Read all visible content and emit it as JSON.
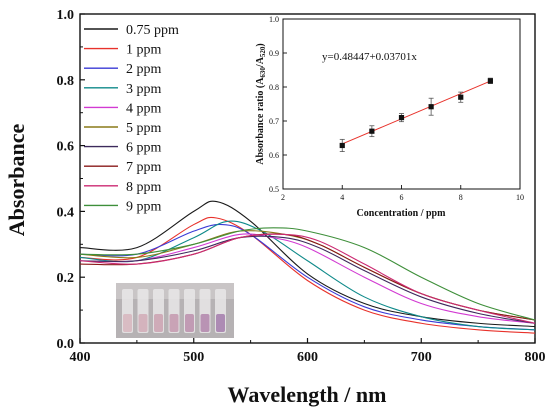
{
  "chart_data": [
    {
      "type": "line",
      "xlabel": "Wavelength / nm",
      "ylabel": "Absorbance",
      "xlim": [
        400,
        800
      ],
      "ylim": [
        0.0,
        1.0
      ],
      "xticks": [
        "400",
        "500",
        "600",
        "700",
        "800"
      ],
      "yticks": [
        "0.0",
        "0.2",
        "0.4",
        "0.6",
        "0.8",
        "1.0"
      ],
      "legend_position": "top-left",
      "series": [
        {
          "name": "0.75 ppm",
          "color": "#1a1a1a",
          "x": [
            400,
            450,
            500,
            520,
            550,
            600,
            650,
            700,
            750,
            800
          ],
          "y": [
            0.29,
            0.29,
            0.4,
            0.43,
            0.37,
            0.21,
            0.12,
            0.08,
            0.06,
            0.05
          ]
        },
        {
          "name": "1 ppm",
          "color": "#e8322b",
          "x": [
            400,
            450,
            500,
            520,
            550,
            600,
            650,
            700,
            750,
            800
          ],
          "y": [
            0.26,
            0.26,
            0.36,
            0.38,
            0.33,
            0.19,
            0.1,
            0.06,
            0.04,
            0.03
          ]
        },
        {
          "name": "2 ppm",
          "color": "#3a3ad6",
          "x": [
            400,
            450,
            500,
            525,
            550,
            600,
            650,
            700,
            750,
            800
          ],
          "y": [
            0.27,
            0.27,
            0.34,
            0.36,
            0.33,
            0.2,
            0.11,
            0.07,
            0.05,
            0.04
          ]
        },
        {
          "name": "3 ppm",
          "color": "#0f8a8a",
          "x": [
            400,
            450,
            500,
            530,
            560,
            600,
            650,
            700,
            750,
            800
          ],
          "y": [
            0.26,
            0.25,
            0.32,
            0.37,
            0.34,
            0.25,
            0.14,
            0.08,
            0.05,
            0.04
          ]
        },
        {
          "name": "4 ppm",
          "color": "#d23ad2",
          "x": [
            400,
            450,
            500,
            540,
            570,
            600,
            650,
            700,
            750,
            800
          ],
          "y": [
            0.25,
            0.25,
            0.29,
            0.33,
            0.32,
            0.29,
            0.2,
            0.12,
            0.08,
            0.06
          ]
        },
        {
          "name": "5 ppm",
          "color": "#8a7a18",
          "x": [
            400,
            450,
            500,
            540,
            580,
            610,
            650,
            700,
            750,
            800
          ],
          "y": [
            0.27,
            0.26,
            0.3,
            0.34,
            0.33,
            0.3,
            0.23,
            0.15,
            0.1,
            0.07
          ]
        },
        {
          "name": "6 ppm",
          "color": "#3d2a5c",
          "x": [
            400,
            450,
            500,
            540,
            580,
            610,
            650,
            700,
            750,
            800
          ],
          "y": [
            0.25,
            0.25,
            0.28,
            0.32,
            0.32,
            0.29,
            0.22,
            0.14,
            0.09,
            0.06
          ]
        },
        {
          "name": "7 ppm",
          "color": "#8a1a1a",
          "x": [
            400,
            450,
            500,
            540,
            580,
            610,
            650,
            700,
            750,
            800
          ],
          "y": [
            0.24,
            0.24,
            0.27,
            0.32,
            0.33,
            0.3,
            0.23,
            0.15,
            0.1,
            0.07
          ]
        },
        {
          "name": "8 ppm",
          "color": "#cc2a72",
          "x": [
            400,
            450,
            500,
            540,
            580,
            610,
            650,
            700,
            750,
            800
          ],
          "y": [
            0.25,
            0.24,
            0.27,
            0.32,
            0.33,
            0.31,
            0.24,
            0.15,
            0.1,
            0.06
          ]
        },
        {
          "name": "9 ppm",
          "color": "#3e8f3a",
          "x": [
            400,
            450,
            500,
            540,
            570,
            600,
            650,
            700,
            750,
            800
          ],
          "y": [
            0.27,
            0.27,
            0.3,
            0.34,
            0.35,
            0.34,
            0.29,
            0.2,
            0.12,
            0.07
          ]
        }
      ]
    },
    {
      "type": "scatter",
      "xlabel": "Concentration / ppm",
      "ylabel": "Absorbance ratio (A630/A520)",
      "xlim": [
        2,
        10
      ],
      "ylim": [
        0.5,
        1.0
      ],
      "xticks": [
        "2",
        "4",
        "6",
        "8",
        "10"
      ],
      "yticks": [
        "0.5",
        "0.6",
        "0.7",
        "0.8",
        "0.9",
        "1.0"
      ],
      "annotation": "y=0.48447+0.03701x",
      "fit_color": "#e8322b",
      "points": [
        {
          "x": 4,
          "y": 0.628,
          "err": 0.018
        },
        {
          "x": 5,
          "y": 0.67,
          "err": 0.016
        },
        {
          "x": 6,
          "y": 0.71,
          "err": 0.012
        },
        {
          "x": 7,
          "y": 0.742,
          "err": 0.025
        },
        {
          "x": 8,
          "y": 0.77,
          "err": 0.015
        },
        {
          "x": 9,
          "y": 0.818,
          "err": 0.008
        }
      ],
      "fit": {
        "intercept": 0.48447,
        "slope": 0.03701
      }
    }
  ]
}
